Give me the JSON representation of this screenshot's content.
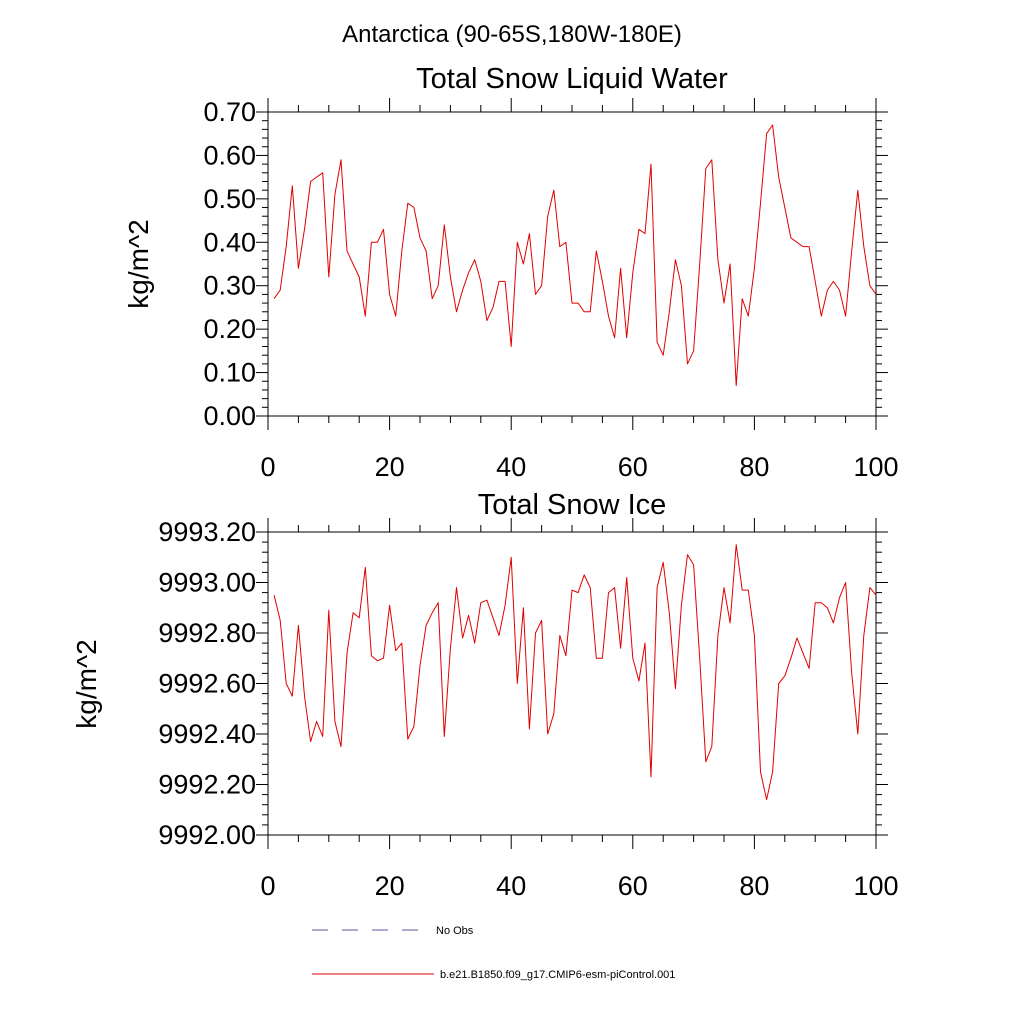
{
  "figure_title": "Antarctica (90-65S,180W-180E)",
  "legend": {
    "entries": [
      {
        "label": "No Obs",
        "style": "dashed",
        "color": "#5a5aa0"
      },
      {
        "label": "b.e21.B1850.f09_g17.CMIP6-esm-piControl.001",
        "style": "solid",
        "color": "#e00000"
      }
    ]
  },
  "chart_data": [
    {
      "type": "line",
      "title": "Total Snow Liquid Water",
      "xlabel": "",
      "ylabel": "kg/m^2",
      "xlim": [
        0,
        100
      ],
      "ylim": [
        0,
        0.7
      ],
      "xticks": [
        0,
        20,
        40,
        60,
        80,
        100
      ],
      "xtick_labels": [
        "0",
        "20",
        "40",
        "60",
        "80",
        "100"
      ],
      "yticks": [
        0,
        0.1,
        0.2,
        0.3,
        0.4,
        0.5,
        0.6,
        0.7
      ],
      "ytick_labels": [
        "0.00",
        "0.10",
        "0.20",
        "0.30",
        "0.40",
        "0.50",
        "0.60",
        "0.70"
      ],
      "grid": false,
      "series": [
        {
          "name": "b.e21.B1850.f09_g17.CMIP6-esm-piControl.001",
          "color": "#e00000",
          "x_start": 1,
          "x_step": 1,
          "values": [
            0.27,
            0.29,
            0.39,
            0.53,
            0.34,
            0.43,
            0.54,
            0.55,
            0.56,
            0.32,
            0.51,
            0.59,
            0.38,
            0.35,
            0.32,
            0.23,
            0.4,
            0.4,
            0.43,
            0.28,
            0.23,
            0.38,
            0.49,
            0.48,
            0.41,
            0.38,
            0.27,
            0.3,
            0.44,
            0.32,
            0.24,
            0.29,
            0.33,
            0.36,
            0.31,
            0.22,
            0.25,
            0.31,
            0.31,
            0.16,
            0.4,
            0.35,
            0.42,
            0.28,
            0.3,
            0.46,
            0.52,
            0.39,
            0.4,
            0.26,
            0.26,
            0.24,
            0.24,
            0.38,
            0.31,
            0.23,
            0.18,
            0.34,
            0.18,
            0.33,
            0.43,
            0.42,
            0.58,
            0.17,
            0.14,
            0.24,
            0.36,
            0.3,
            0.12,
            0.15,
            0.35,
            0.57,
            0.59,
            0.36,
            0.26,
            0.35,
            0.07,
            0.27,
            0.23,
            0.34,
            0.49,
            0.65,
            0.67,
            0.55,
            0.48,
            0.41,
            0.4,
            0.39,
            0.39,
            0.31,
            0.23,
            0.29,
            0.31,
            0.29,
            0.23,
            0.38,
            0.52,
            0.39,
            0.3,
            0.28
          ]
        }
      ]
    },
    {
      "type": "line",
      "title": "Total Snow Ice",
      "xlabel": "",
      "ylabel": "kg/m^2",
      "xlim": [
        0,
        100
      ],
      "ylim": [
        9992.0,
        9993.2
      ],
      "xticks": [
        0,
        20,
        40,
        60,
        80,
        100
      ],
      "xtick_labels": [
        "0",
        "20",
        "40",
        "60",
        "80",
        "100"
      ],
      "yticks": [
        9992.0,
        9992.2,
        9992.4,
        9992.6,
        9992.8,
        9993.0,
        9993.2
      ],
      "ytick_labels": [
        "9992.00",
        "9992.20",
        "9992.40",
        "9992.60",
        "9992.80",
        "9993.00",
        "9993.20"
      ],
      "grid": false,
      "series": [
        {
          "name": "b.e21.B1850.f09_g17.CMIP6-esm-piControl.001",
          "color": "#e00000",
          "x_start": 1,
          "x_step": 1,
          "values": [
            9992.95,
            9992.85,
            9992.6,
            9992.55,
            9992.83,
            9992.55,
            9992.37,
            9992.45,
            9992.39,
            9992.89,
            9992.45,
            9992.35,
            9992.72,
            9992.88,
            9992.86,
            9993.06,
            9992.71,
            9992.69,
            9992.7,
            9992.91,
            9992.73,
            9992.76,
            9992.38,
            9992.43,
            9992.67,
            9992.83,
            9992.88,
            9992.92,
            9992.39,
            9992.74,
            9992.98,
            9992.78,
            9992.87,
            9992.76,
            9992.92,
            9992.93,
            9992.86,
            9992.79,
            9992.91,
            9993.1,
            9992.6,
            9992.9,
            9992.42,
            9992.8,
            9992.85,
            9992.4,
            9992.48,
            9992.79,
            9992.71,
            9992.97,
            9992.96,
            9993.03,
            9992.98,
            9992.7,
            9992.7,
            9992.96,
            9992.98,
            9992.74,
            9993.02,
            9992.7,
            9992.61,
            9992.76,
            9992.23,
            9992.98,
            9993.08,
            9992.88,
            9992.58,
            9992.91,
            9993.11,
            9993.07,
            9992.7,
            9992.29,
            9992.35,
            9992.79,
            9992.98,
            9992.84,
            9993.15,
            9992.97,
            9992.97,
            9992.79,
            9992.25,
            9992.14,
            9992.25,
            9992.6,
            9992.63,
            9992.7,
            9992.78,
            9992.72,
            9992.66,
            9992.92,
            9992.92,
            9992.9,
            9992.84,
            9992.94,
            9993.0,
            9992.64,
            9992.4,
            9992.79,
            9992.98,
            9992.95
          ]
        }
      ]
    }
  ]
}
